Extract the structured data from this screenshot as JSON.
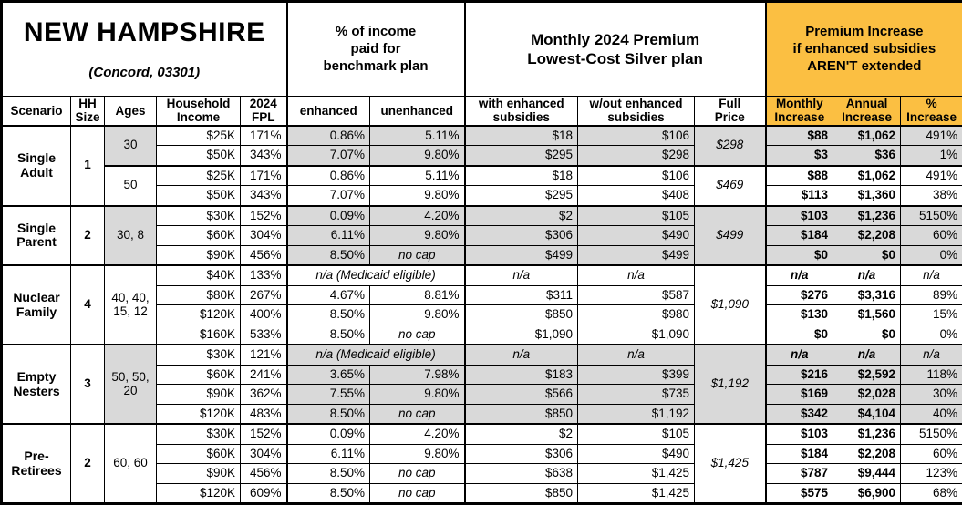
{
  "header": {
    "title": "NEW HAMPSHIRE",
    "subtitle": "(Concord, 03301)",
    "group_income": "% of income\npaid for\nbenchmark plan",
    "group_premium": "Monthly 2024 Premium\nLowest-Cost Silver plan",
    "group_increase": "Premium Increase\nif enhanced subsidies\nAREN'T extended",
    "columns": [
      "Scenario",
      "HH\nSize",
      "Ages",
      "Household\nIncome",
      "2024\nFPL",
      "enhanced",
      "unenhanced",
      "with enhanced\nsubsidies",
      "w/out enhanced\nsubsidies",
      "Full\nPrice",
      "Monthly\nIncrease",
      "Annual\nIncrease",
      "%\nIncrease"
    ]
  },
  "colors": {
    "accent_orange": "#FBBF42",
    "row_shade_gray": "#D9D9D9"
  },
  "medicaid_note": "n/a (Medicaid eligible)",
  "groups": [
    {
      "scenario": "Single\nAdult",
      "hh_size": "1",
      "subgroups": [
        {
          "ages": "30",
          "shaded": true,
          "full_price": "$298",
          "rows": [
            {
              "income": "$25K",
              "fpl": "171%",
              "enhanced": "0.86%",
              "unenhanced": "5.11%",
              "with_sub": "$18",
              "wout_sub": "$106",
              "monthly": "$88",
              "annual": "$1,062",
              "pct": "491%"
            },
            {
              "income": "$50K",
              "fpl": "343%",
              "enhanced": "7.07%",
              "unenhanced": "9.80%",
              "with_sub": "$295",
              "wout_sub": "$298",
              "monthly": "$3",
              "annual": "$36",
              "pct": "1%"
            }
          ]
        },
        {
          "ages": "50",
          "shaded": false,
          "full_price": "$469",
          "rows": [
            {
              "income": "$25K",
              "fpl": "171%",
              "enhanced": "0.86%",
              "unenhanced": "5.11%",
              "with_sub": "$18",
              "wout_sub": "$106",
              "monthly": "$88",
              "annual": "$1,062",
              "pct": "491%"
            },
            {
              "income": "$50K",
              "fpl": "343%",
              "enhanced": "7.07%",
              "unenhanced": "9.80%",
              "with_sub": "$295",
              "wout_sub": "$408",
              "monthly": "$113",
              "annual": "$1,360",
              "pct": "38%"
            }
          ]
        }
      ]
    },
    {
      "scenario": "Single\nParent",
      "hh_size": "2",
      "subgroups": [
        {
          "ages": "30, 8",
          "shaded": true,
          "full_price": "$499",
          "rows": [
            {
              "income": "$30K",
              "fpl": "152%",
              "enhanced": "0.09%",
              "unenhanced": "4.20%",
              "with_sub": "$2",
              "wout_sub": "$105",
              "monthly": "$103",
              "annual": "$1,236",
              "pct": "5150%"
            },
            {
              "income": "$60K",
              "fpl": "304%",
              "enhanced": "6.11%",
              "unenhanced": "9.80%",
              "with_sub": "$306",
              "wout_sub": "$490",
              "monthly": "$184",
              "annual": "$2,208",
              "pct": "60%"
            },
            {
              "income": "$90K",
              "fpl": "456%",
              "enhanced": "8.50%",
              "unenhanced": "no cap",
              "with_sub": "$499",
              "wout_sub": "$499",
              "monthly": "$0",
              "annual": "$0",
              "pct": "0%"
            }
          ]
        }
      ]
    },
    {
      "scenario": "Nuclear\nFamily",
      "hh_size": "4",
      "subgroups": [
        {
          "ages": "40, 40,\n15, 12",
          "shaded": false,
          "full_price": "$1,090",
          "rows": [
            {
              "income": "$40K",
              "fpl": "133%",
              "medicaid": true,
              "with_sub": "n/a",
              "wout_sub": "n/a",
              "monthly": "n/a",
              "annual": "n/a",
              "pct": "n/a"
            },
            {
              "income": "$80K",
              "fpl": "267%",
              "enhanced": "4.67%",
              "unenhanced": "8.81%",
              "with_sub": "$311",
              "wout_sub": "$587",
              "monthly": "$276",
              "annual": "$3,316",
              "pct": "89%"
            },
            {
              "income": "$120K",
              "fpl": "400%",
              "enhanced": "8.50%",
              "unenhanced": "9.80%",
              "with_sub": "$850",
              "wout_sub": "$980",
              "monthly": "$130",
              "annual": "$1,560",
              "pct": "15%"
            },
            {
              "income": "$160K",
              "fpl": "533%",
              "enhanced": "8.50%",
              "unenhanced": "no cap",
              "with_sub": "$1,090",
              "wout_sub": "$1,090",
              "monthly": "$0",
              "annual": "$0",
              "pct": "0%"
            }
          ]
        }
      ]
    },
    {
      "scenario": "Empty\nNesters",
      "hh_size": "3",
      "subgroups": [
        {
          "ages": "50, 50,\n20",
          "shaded": true,
          "full_price": "$1,192",
          "rows": [
            {
              "income": "$30K",
              "fpl": "121%",
              "medicaid": true,
              "with_sub": "n/a",
              "wout_sub": "n/a",
              "monthly": "n/a",
              "annual": "n/a",
              "pct": "n/a"
            },
            {
              "income": "$60K",
              "fpl": "241%",
              "enhanced": "3.65%",
              "unenhanced": "7.98%",
              "with_sub": "$183",
              "wout_sub": "$399",
              "monthly": "$216",
              "annual": "$2,592",
              "pct": "118%"
            },
            {
              "income": "$90K",
              "fpl": "362%",
              "enhanced": "7.55%",
              "unenhanced": "9.80%",
              "with_sub": "$566",
              "wout_sub": "$735",
              "monthly": "$169",
              "annual": "$2,028",
              "pct": "30%"
            },
            {
              "income": "$120K",
              "fpl": "483%",
              "enhanced": "8.50%",
              "unenhanced": "no cap",
              "with_sub": "$850",
              "wout_sub": "$1,192",
              "monthly": "$342",
              "annual": "$4,104",
              "pct": "40%"
            }
          ]
        }
      ]
    },
    {
      "scenario": "Pre-\nRetirees",
      "hh_size": "2",
      "subgroups": [
        {
          "ages": "60, 60",
          "shaded": false,
          "full_price": "$1,425",
          "rows": [
            {
              "income": "$30K",
              "fpl": "152%",
              "enhanced": "0.09%",
              "unenhanced": "4.20%",
              "with_sub": "$2",
              "wout_sub": "$105",
              "monthly": "$103",
              "annual": "$1,236",
              "pct": "5150%"
            },
            {
              "income": "$60K",
              "fpl": "304%",
              "enhanced": "6.11%",
              "unenhanced": "9.80%",
              "with_sub": "$306",
              "wout_sub": "$490",
              "monthly": "$184",
              "annual": "$2,208",
              "pct": "60%"
            },
            {
              "income": "$90K",
              "fpl": "456%",
              "enhanced": "8.50%",
              "unenhanced": "no cap",
              "with_sub": "$638",
              "wout_sub": "$1,425",
              "monthly": "$787",
              "annual": "$9,444",
              "pct": "123%"
            },
            {
              "income": "$120K",
              "fpl": "609%",
              "enhanced": "8.50%",
              "unenhanced": "no cap",
              "with_sub": "$850",
              "wout_sub": "$1,425",
              "monthly": "$575",
              "annual": "$6,900",
              "pct": "68%"
            }
          ]
        }
      ]
    }
  ]
}
